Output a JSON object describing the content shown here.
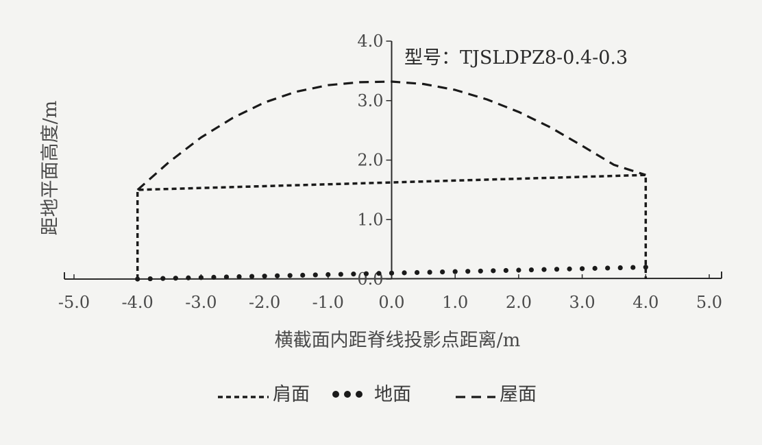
{
  "chart_data": {
    "type": "line",
    "model_label": "型号：TJSLDPZ8-0.4-0.3",
    "xlabel": "横截面内距脊线投影点距离/m",
    "ylabel": "距地平面高度/m",
    "xlim": [
      -5.0,
      5.0
    ],
    "ylim": [
      0.0,
      4.0
    ],
    "x_ticks": [
      "-5.0",
      "-4.0",
      "-3.0",
      "-2.0",
      "-1.0",
      "0.0",
      "1.0",
      "2.0",
      "3.0",
      "4.0",
      "5.0"
    ],
    "y_ticks": [
      "0.0",
      "1.0",
      "2.0",
      "3.0",
      "4.0"
    ],
    "legend_position": "bottom",
    "series": [
      {
        "name": "肩面",
        "style": "short-dash",
        "color": "#1a1a1a",
        "x": [
          -4.0,
          -4.0,
          4.0,
          4.0
        ],
        "y": [
          0.0,
          1.5,
          1.75,
          0.0
        ]
      },
      {
        "name": "地面",
        "style": "dots",
        "color": "#1a1a1a",
        "x": [
          -4.0,
          -3.8,
          -3.6,
          -3.4,
          -3.2,
          -3.0,
          -2.8,
          -2.6,
          -2.4,
          -2.2,
          -2.0,
          -1.8,
          -1.6,
          -1.4,
          -1.2,
          -1.0,
          -0.8,
          -0.6,
          -0.4,
          -0.2,
          0.0,
          0.2,
          0.4,
          0.6,
          0.8,
          1.0,
          1.2,
          1.4,
          1.6,
          1.8,
          2.0,
          2.2,
          2.4,
          2.6,
          2.8,
          3.0,
          3.2,
          3.4,
          3.6,
          3.8,
          4.0
        ],
        "y": [
          0.0,
          0.005,
          0.01,
          0.015,
          0.02,
          0.025,
          0.03,
          0.035,
          0.04,
          0.045,
          0.05,
          0.055,
          0.06,
          0.065,
          0.07,
          0.075,
          0.08,
          0.085,
          0.09,
          0.095,
          0.1,
          0.105,
          0.11,
          0.115,
          0.12,
          0.125,
          0.13,
          0.135,
          0.14,
          0.145,
          0.15,
          0.155,
          0.16,
          0.165,
          0.17,
          0.175,
          0.18,
          0.185,
          0.19,
          0.195,
          0.2
        ]
      },
      {
        "name": "屋面",
        "style": "long-dash",
        "color": "#1a1a1a",
        "x": [
          -4.0,
          -3.5,
          -3.0,
          -2.5,
          -2.0,
          -1.5,
          -1.0,
          -0.5,
          0.0,
          0.5,
          1.0,
          1.5,
          2.0,
          2.5,
          3.0,
          3.5,
          4.0
        ],
        "y": [
          1.5,
          1.97,
          2.38,
          2.71,
          2.97,
          3.15,
          3.26,
          3.31,
          3.32,
          3.28,
          3.18,
          3.02,
          2.81,
          2.55,
          2.24,
          1.92,
          1.75
        ]
      }
    ]
  }
}
